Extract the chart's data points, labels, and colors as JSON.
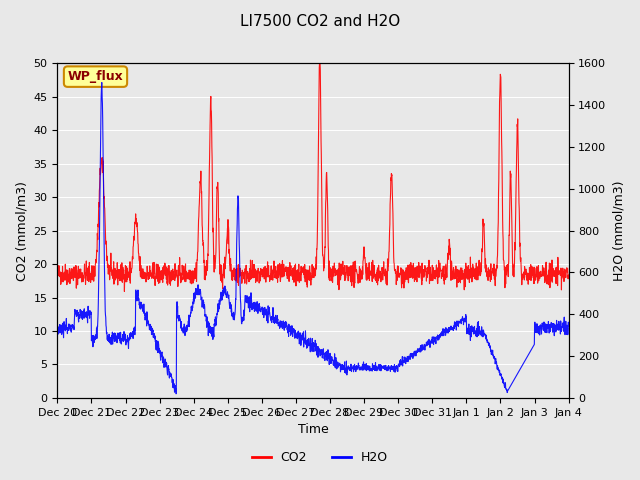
{
  "title": "LI7500 CO2 and H2O",
  "ylabel_left": "CO2 (mmol/m3)",
  "ylabel_right": "H2O (mmol/m3)",
  "xlabel": "Time",
  "ylim_left": [
    0,
    50
  ],
  "ylim_right": [
    0,
    1600
  ],
  "co2_color": "#FF0000",
  "h2o_color": "#0000FF",
  "background_color": "#E8E8E8",
  "annotation_text": "WP_flux",
  "annotation_bg": "#FFFF99",
  "annotation_border": "#CC8800",
  "x_tick_labels": [
    "Dec 20",
    "Dec 21",
    "Dec 22",
    "Dec 23",
    "Dec 24",
    "Dec 25",
    "Dec 26",
    "Dec 27",
    "Dec 28",
    "Dec 29",
    "Dec 30",
    "Dec 31",
    "Jan 1",
    "Jan 2",
    "Jan 3",
    "Jan 4"
  ],
  "legend_co2": "CO2",
  "legend_h2o": "H2O",
  "title_fontsize": 11,
  "label_fontsize": 9,
  "tick_fontsize": 8
}
